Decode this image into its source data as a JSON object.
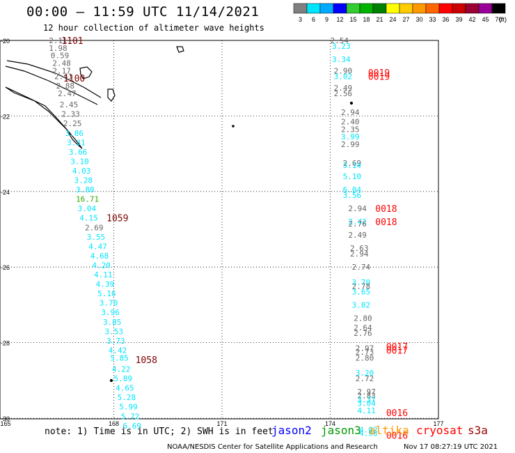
{
  "header": {
    "title": "00:00 – 11:59 UTC 11/14/2021",
    "subtitle": "12 hour collection of altimeter wave heights"
  },
  "colorbar": {
    "labels": [
      "3",
      "6",
      "9",
      "12",
      "15",
      "18",
      "21",
      "24",
      "27",
      "30",
      "33",
      "36",
      "39",
      "42",
      "45",
      "70"
    ],
    "unit": "(ft)",
    "colors": [
      "#808080",
      "#00e5ff",
      "#00aaff",
      "#0000ff",
      "#33cc33",
      "#00b300",
      "#008000",
      "#ffff00",
      "#ffcc00",
      "#ff9900",
      "#ff6600",
      "#ff0000",
      "#cc0000",
      "#990033",
      "#990099",
      "#000000"
    ]
  },
  "note": "note: 1) Time is in UTC; 2) SWH is in feet",
  "satellites": [
    {
      "name": "jason2",
      "color": "#0000ff"
    },
    {
      "name": "jason3",
      "color": "#009900"
    },
    {
      "name": "altika",
      "color": "#ff9900"
    },
    {
      "name": "cryosat",
      "color": "#ff0000"
    },
    {
      "name": "s3a",
      "color": "#990000"
    }
  ],
  "footer_left": "NOAA/NESDIS Center for Satellite Applications and Research",
  "footer_right": "Nov 17 08:27:19 UTC 2021",
  "chart_data": {
    "type": "scatter",
    "xlim": [
      165,
      177
    ],
    "ylim": [
      -30,
      -20
    ],
    "x_ticks": [
      "165",
      "168",
      "171",
      "174",
      "177"
    ],
    "y_ticks": [
      "-20",
      "-22",
      "-24",
      "-26",
      "-28",
      "-30"
    ],
    "grid": true,
    "series": [
      {
        "name": "s3a",
        "color": "#7a0000",
        "points": [
          {
            "x": 166.2,
            "y": -20.0,
            "v": "2.11"
          },
          {
            "x": 166.2,
            "y": -20.2,
            "v": "1.98"
          },
          {
            "x": 166.25,
            "y": -20.4,
            "v": "0.59"
          },
          {
            "x": 166.3,
            "y": -20.6,
            "v": "2.48"
          },
          {
            "x": 166.3,
            "y": -20.8,
            "v": "2.17"
          },
          {
            "x": 166.35,
            "y": -20.95,
            "v": "2.41"
          },
          {
            "x": 166.4,
            "y": -21.2,
            "v": "2.88"
          },
          {
            "x": 166.45,
            "y": -21.4,
            "v": "2.47"
          },
          {
            "x": 166.5,
            "y": -21.7,
            "v": "2.45"
          },
          {
            "x": 166.55,
            "y": -21.95,
            "v": "2.33"
          },
          {
            "x": 166.6,
            "y": -22.2,
            "v": "2.25"
          },
          {
            "x": 166.65,
            "y": -22.45,
            "v": "3.86",
            "c": "#00e5ff"
          },
          {
            "x": 166.7,
            "y": -22.7,
            "v": "3.31",
            "c": "#00e5ff"
          },
          {
            "x": 166.75,
            "y": -22.95,
            "v": "3.66",
            "c": "#00e5ff"
          },
          {
            "x": 166.8,
            "y": -23.2,
            "v": "3.10",
            "c": "#00e5ff"
          },
          {
            "x": 166.85,
            "y": -23.45,
            "v": "4.03",
            "c": "#00e5ff"
          },
          {
            "x": 166.9,
            "y": -23.7,
            "v": "3.28",
            "c": "#00e5ff"
          },
          {
            "x": 166.95,
            "y": -23.95,
            "v": "3.80",
            "c": "#00e5ff"
          },
          {
            "x": 166.95,
            "y": -24.2,
            "v": "16.71",
            "c": "#33aa00"
          },
          {
            "x": 167.0,
            "y": -24.45,
            "v": "3.04",
            "c": "#00e5ff"
          },
          {
            "x": 167.05,
            "y": -24.7,
            "v": "4.15",
            "c": "#00e5ff"
          },
          {
            "x": 167.2,
            "y": -24.95,
            "v": "2.69"
          },
          {
            "x": 167.25,
            "y": -25.2,
            "v": "3.55",
            "c": "#00e5ff"
          },
          {
            "x": 167.3,
            "y": -25.45,
            "v": "4.47",
            "c": "#00e5ff"
          },
          {
            "x": 167.35,
            "y": -25.7,
            "v": "4.68",
            "c": "#00e5ff"
          },
          {
            "x": 167.4,
            "y": -25.95,
            "v": "4.20",
            "c": "#00e5ff"
          },
          {
            "x": 167.45,
            "y": -26.2,
            "v": "4.11",
            "c": "#00e5ff"
          },
          {
            "x": 167.5,
            "y": -26.45,
            "v": "4.39",
            "c": "#00e5ff"
          },
          {
            "x": 167.55,
            "y": -26.7,
            "v": "5.16",
            "c": "#00e5ff"
          },
          {
            "x": 167.6,
            "y": -26.95,
            "v": "3.70",
            "c": "#00e5ff"
          },
          {
            "x": 167.65,
            "y": -27.2,
            "v": "3.96",
            "c": "#00e5ff"
          },
          {
            "x": 167.7,
            "y": -27.45,
            "v": "3.85",
            "c": "#00e5ff"
          },
          {
            "x": 167.75,
            "y": -27.7,
            "v": "3.53",
            "c": "#00e5ff"
          },
          {
            "x": 167.8,
            "y": -27.95,
            "v": "3.73",
            "c": "#00e5ff"
          },
          {
            "x": 167.85,
            "y": -28.2,
            "v": "4.42",
            "c": "#00e5ff"
          },
          {
            "x": 167.9,
            "y": -28.4,
            "v": "5.85",
            "c": "#00e5ff"
          },
          {
            "x": 167.95,
            "y": -28.7,
            "v": "4.22",
            "c": "#00e5ff"
          },
          {
            "x": 168.0,
            "y": -28.95,
            "v": "5.89",
            "c": "#00e5ff"
          },
          {
            "x": 168.05,
            "y": -29.2,
            "v": "4.65",
            "c": "#00e5ff"
          },
          {
            "x": 168.1,
            "y": -29.45,
            "v": "5.28",
            "c": "#00e5ff"
          },
          {
            "x": 168.15,
            "y": -29.7,
            "v": "5.99",
            "c": "#00e5ff"
          },
          {
            "x": 168.2,
            "y": -29.95,
            "v": "5.72",
            "c": "#00e5ff"
          },
          {
            "x": 168.25,
            "y": -30.2,
            "v": "6.69",
            "c": "#00e5ff"
          }
        ]
      },
      {
        "name": "cryosat",
        "color": "#ff0000",
        "points": [
          {
            "x": 174.0,
            "y": -20.0,
            "v": "2.54"
          },
          {
            "x": 174.05,
            "y": -20.15,
            "v": "3.23",
            "c": "#00e5ff"
          },
          {
            "x": 174.05,
            "y": -20.5,
            "v": "3.34",
            "c": "#00e5ff"
          },
          {
            "x": 174.1,
            "y": -20.8,
            "v": "2.90"
          },
          {
            "x": 174.1,
            "y": -20.95,
            "v": "3.02",
            "c": "#00e5ff"
          },
          {
            "x": 174.1,
            "y": -21.25,
            "v": "2.49"
          },
          {
            "x": 174.1,
            "y": -21.4,
            "v": "2.56"
          },
          {
            "x": 174.3,
            "y": -21.9,
            "v": "2.94"
          },
          {
            "x": 174.3,
            "y": -22.15,
            "v": "2.40"
          },
          {
            "x": 174.3,
            "y": -22.35,
            "v": "2.35"
          },
          {
            "x": 174.3,
            "y": -22.55,
            "v": "3.99",
            "c": "#00e5ff"
          },
          {
            "x": 174.3,
            "y": -22.75,
            "v": "2.99"
          },
          {
            "x": 174.35,
            "y": -23.25,
            "v": "2.69"
          },
          {
            "x": 174.35,
            "y": -23.3,
            "v": "3.14",
            "c": "#00e5ff"
          },
          {
            "x": 174.35,
            "y": -23.6,
            "v": "5.10",
            "c": "#00e5ff"
          },
          {
            "x": 174.35,
            "y": -23.95,
            "v": "6.04",
            "c": "#00e5ff"
          },
          {
            "x": 174.35,
            "y": -24.1,
            "v": "3.56",
            "c": "#00e5ff"
          },
          {
            "x": 174.5,
            "y": -24.45,
            "v": "2.94"
          },
          {
            "x": 174.5,
            "y": -24.8,
            "v": "2.42",
            "c": "#00e5ff"
          },
          {
            "x": 174.5,
            "y": -24.85,
            "v": "2.76"
          },
          {
            "x": 174.5,
            "y": -25.15,
            "v": "2.49"
          },
          {
            "x": 174.55,
            "y": -25.5,
            "v": "2.63"
          },
          {
            "x": 174.55,
            "y": -25.65,
            "v": "2.94"
          },
          {
            "x": 174.6,
            "y": -26.0,
            "v": "2.74"
          },
          {
            "x": 174.6,
            "y": -26.4,
            "v": "3.70",
            "c": "#00e5ff"
          },
          {
            "x": 174.6,
            "y": -26.5,
            "v": "2.78"
          },
          {
            "x": 174.6,
            "y": -26.65,
            "v": "3.65",
            "c": "#00e5ff"
          },
          {
            "x": 174.6,
            "y": -27.0,
            "v": "3.02",
            "c": "#00e5ff"
          },
          {
            "x": 174.65,
            "y": -27.35,
            "v": "2.80"
          },
          {
            "x": 174.65,
            "y": -27.6,
            "v": "2.64"
          },
          {
            "x": 174.65,
            "y": -27.75,
            "v": "2.76"
          },
          {
            "x": 174.7,
            "y": -28.15,
            "v": "2.97"
          },
          {
            "x": 174.7,
            "y": -28.25,
            "v": "2.73"
          },
          {
            "x": 174.7,
            "y": -28.4,
            "v": "2.80"
          },
          {
            "x": 174.7,
            "y": -28.8,
            "v": "3.20",
            "c": "#00e5ff"
          },
          {
            "x": 174.7,
            "y": -28.95,
            "v": "2.72"
          },
          {
            "x": 174.75,
            "y": -29.3,
            "v": "2.97"
          },
          {
            "x": 174.75,
            "y": -29.4,
            "v": "2.83"
          },
          {
            "x": 174.75,
            "y": -29.5,
            "v": "3.37",
            "c": "#00e5ff"
          },
          {
            "x": 174.75,
            "y": -29.6,
            "v": "3.04",
            "c": "#00e5ff"
          },
          {
            "x": 174.75,
            "y": -29.8,
            "v": "4.11",
            "c": "#00e5ff"
          },
          {
            "x": 174.8,
            "y": -30.3,
            "v": "4.92",
            "c": "#00e5ff"
          },
          {
            "x": 174.8,
            "y": -30.4,
            "v": "4.98",
            "c": "#00e5ff"
          }
        ]
      }
    ],
    "annotations": [
      {
        "x": 166.55,
        "y": -20.0,
        "text": "1101",
        "color": "#7a0000"
      },
      {
        "x": 166.6,
        "y": -21.0,
        "text": "1100",
        "color": "#7a0000"
      },
      {
        "x": 167.8,
        "y": -24.7,
        "text": "1059",
        "color": "#7a0000"
      },
      {
        "x": 168.6,
        "y": -28.45,
        "text": "1058",
        "color": "#7a0000"
      },
      {
        "x": 175.05,
        "y": -20.85,
        "text": "0019",
        "color": "#ff0000"
      },
      {
        "x": 175.05,
        "y": -20.95,
        "text": "0019",
        "color": "#ff0000"
      },
      {
        "x": 175.25,
        "y": -24.45,
        "text": "0018",
        "color": "#ff0000"
      },
      {
        "x": 175.25,
        "y": -24.8,
        "text": "0018",
        "color": "#ff0000"
      },
      {
        "x": 175.55,
        "y": -28.1,
        "text": "0017",
        "color": "#ff0000"
      },
      {
        "x": 175.55,
        "y": -28.2,
        "text": "0017",
        "color": "#ff0000"
      },
      {
        "x": 175.55,
        "y": -29.85,
        "text": "0016",
        "color": "#ff0000"
      },
      {
        "x": 175.55,
        "y": -30.45,
        "text": "0016",
        "color": "#ff0000"
      }
    ]
  }
}
